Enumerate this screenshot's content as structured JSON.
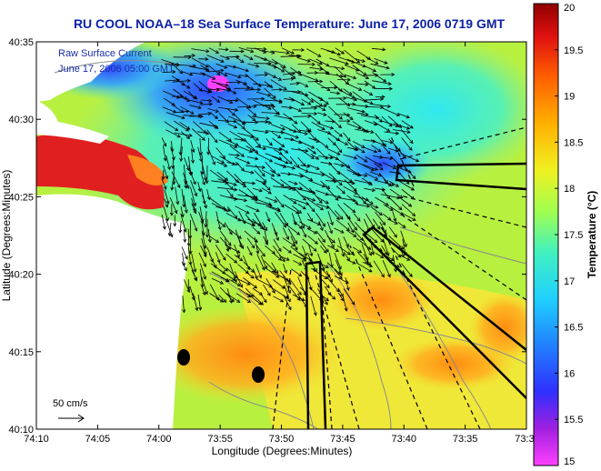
{
  "chart_data": {
    "type": "heatmap",
    "title": "RU COOL  NOAA–18  Sea Surface Temperature:  June 17, 2006 0719 GMT",
    "xlabel": "Longitude (Degrees:Minutes)",
    "ylabel": "Latitude (Degrees:Minutes)",
    "x_ticks": [
      "74:10",
      "74:05",
      "74:00",
      "73:55",
      "73:50",
      "73:45",
      "73:40",
      "73:35",
      "73:3"
    ],
    "y_ticks": [
      "40:10",
      "40:15",
      "40:20",
      "40:25",
      "40:30",
      "40:35"
    ],
    "xlim_minutes_west": [
      70,
      30
    ],
    "ylim_minutes_north": [
      10,
      35
    ],
    "colorbar": {
      "label": "Temperature (°C)",
      "range": [
        15,
        20
      ],
      "ticks": [
        "15",
        "15.5",
        "16",
        "16.5",
        "17",
        "17.5",
        "18",
        "18.5",
        "19",
        "19.5",
        "20"
      ]
    },
    "legend": {
      "line1": "Raw Surface Current",
      "line2": "June 17, 2006 05:00 GMT"
    },
    "scale_label": "50 cm/s",
    "colors": {
      "title": "#0a1fa8",
      "land": "#ffffff",
      "arrows": "#000000"
    }
  }
}
